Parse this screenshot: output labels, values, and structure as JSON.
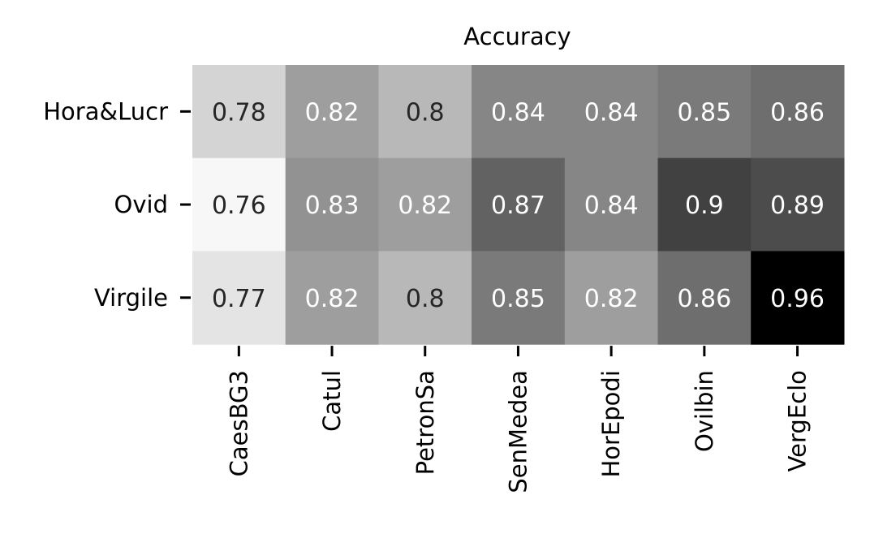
{
  "chart_data": {
    "type": "heatmap",
    "title": "Accuracy",
    "xlabel": "",
    "ylabel": "",
    "rows": [
      "Hora&Lucr",
      "Ovid",
      "Virgile"
    ],
    "columns": [
      "CaesBG3",
      "Catul",
      "PetronSa",
      "SenMedea",
      "HorEpodi",
      "Ovilbin",
      "VergEclo"
    ],
    "values": [
      [
        0.78,
        0.82,
        0.8,
        0.84,
        0.84,
        0.85,
        0.86
      ],
      [
        0.76,
        0.83,
        0.82,
        0.87,
        0.84,
        0.9,
        0.89
      ],
      [
        0.77,
        0.82,
        0.8,
        0.85,
        0.82,
        0.86,
        0.96
      ]
    ],
    "cell_labels": [
      [
        "0.78",
        "0.82",
        "0.8",
        "0.84",
        "0.84",
        "0.85",
        "0.86"
      ],
      [
        "0.76",
        "0.83",
        "0.82",
        "0.87",
        "0.84",
        "0.9",
        "0.89"
      ],
      [
        "0.77",
        "0.82",
        "0.8",
        "0.85",
        "0.82",
        "0.86",
        "0.96"
      ]
    ],
    "colormap": "Greys",
    "color_low": "#ffffff",
    "color_high": "#000000",
    "value_range": [
      0.76,
      0.96
    ],
    "colorbar": false,
    "grid": false,
    "text_color_dark": "#262626",
    "text_color_light": "#ffffff"
  }
}
